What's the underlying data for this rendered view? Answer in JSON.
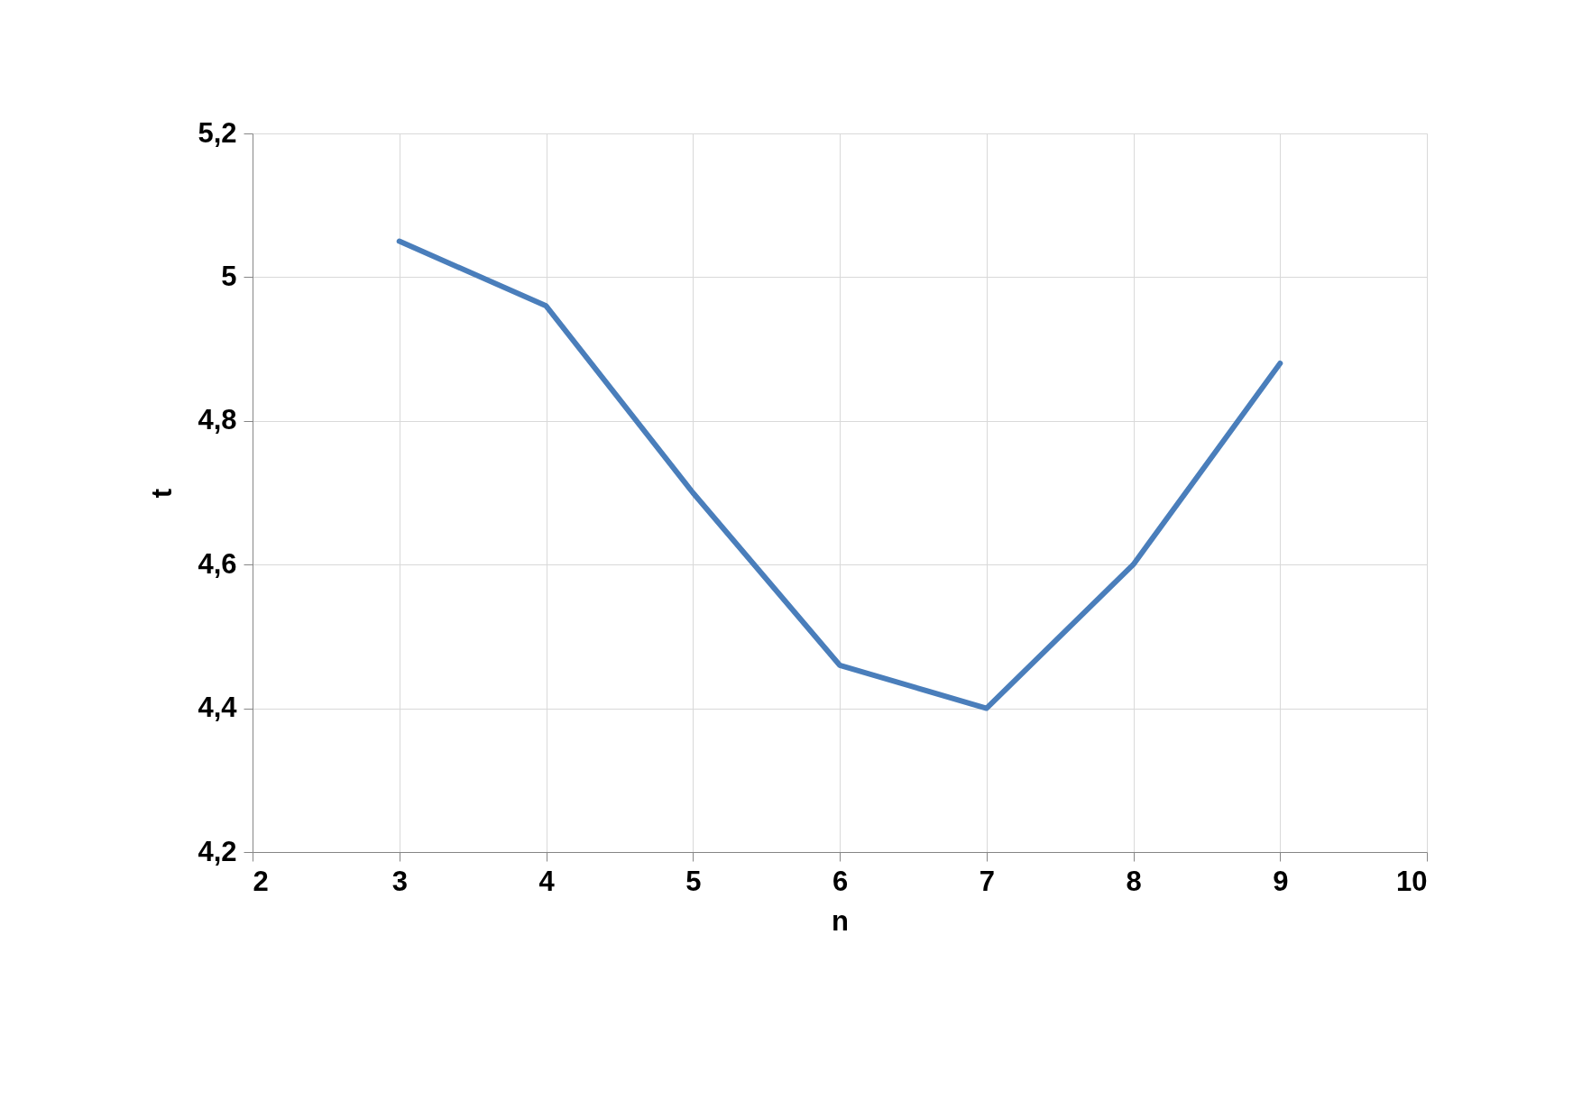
{
  "chart_data": {
    "type": "line",
    "xlabel": "n",
    "ylabel": "t",
    "x": [
      3,
      4,
      5,
      6,
      7,
      8,
      9
    ],
    "series": [
      {
        "color": "#4a7ebb",
        "values": [
          5.05,
          4.96,
          4.7,
          4.46,
          4.4,
          4.6,
          4.88
        ]
      }
    ],
    "xlim": [
      2,
      10
    ],
    "xticks": [
      2,
      3,
      4,
      5,
      6,
      7,
      8,
      9,
      10
    ],
    "ylim": [
      4.2,
      5.2
    ],
    "yticks": [
      {
        "value": 4.2,
        "label": "4,2"
      },
      {
        "value": 4.4,
        "label": "4,4"
      },
      {
        "value": 4.6,
        "label": "4,6"
      },
      {
        "value": 4.8,
        "label": "4,8"
      },
      5,
      {
        "value": 5.2,
        "label": "5,2"
      }
    ],
    "grid": true,
    "marker": "none",
    "line_style": "solid"
  }
}
